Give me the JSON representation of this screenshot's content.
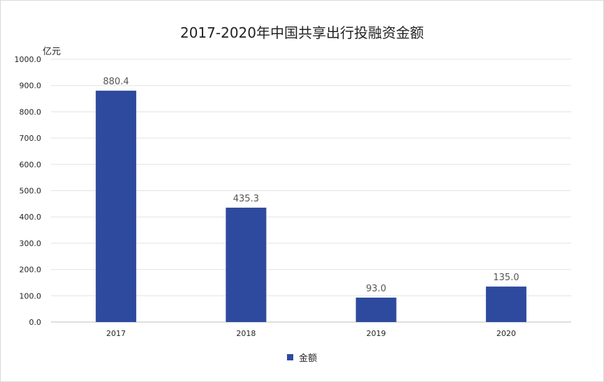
{
  "chart_data": {
    "type": "bar",
    "title": "2017-2020年中国共享出行投融资金额",
    "unit_label": "亿元",
    "categories": [
      "2017",
      "2018",
      "2019",
      "2020"
    ],
    "series": [
      {
        "name": "金额",
        "values": [
          880.4,
          435.3,
          93.0,
          135.0
        ],
        "color": "#2E4A9E"
      }
    ],
    "data_labels": [
      "880.4",
      "435.3",
      "93.0",
      "135.0"
    ],
    "y_ticks": [
      "0.0",
      "100.0",
      "200.0",
      "300.0",
      "400.0",
      "500.0",
      "600.0",
      "700.0",
      "800.0",
      "900.0",
      "1000.0"
    ],
    "ylim": [
      0,
      1000
    ],
    "grid": true,
    "legend_position": "bottom"
  }
}
